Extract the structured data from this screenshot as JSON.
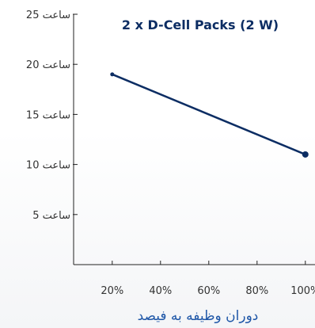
{
  "chart_data": {
    "type": "line",
    "title": "2 x D-Cell Packs (2 W)",
    "xlabel": "دوران وظیفه به فیصد",
    "ylabel": "",
    "x_ticks": [
      "20%",
      "40%",
      "60%",
      "80%",
      "100%"
    ],
    "x_tick_values": [
      20,
      40,
      60,
      80,
      100
    ],
    "y_ticks": [
      "5 ساعت",
      "10 ساعت",
      "15 ساعت",
      "20 ساعت",
      "25 ساعت"
    ],
    "y_tick_values": [
      5,
      10,
      15,
      20,
      25
    ],
    "xlim": [
      4,
      104
    ],
    "ylim": [
      0,
      25
    ],
    "grid": false,
    "series": [
      {
        "x": [
          20,
          100
        ],
        "y": [
          19,
          11
        ]
      }
    ]
  },
  "colors": {
    "series_line": "#0c2d63",
    "axis": "#222222",
    "title": "#0c2d63",
    "x_axis_title": "#1f57a8"
  }
}
